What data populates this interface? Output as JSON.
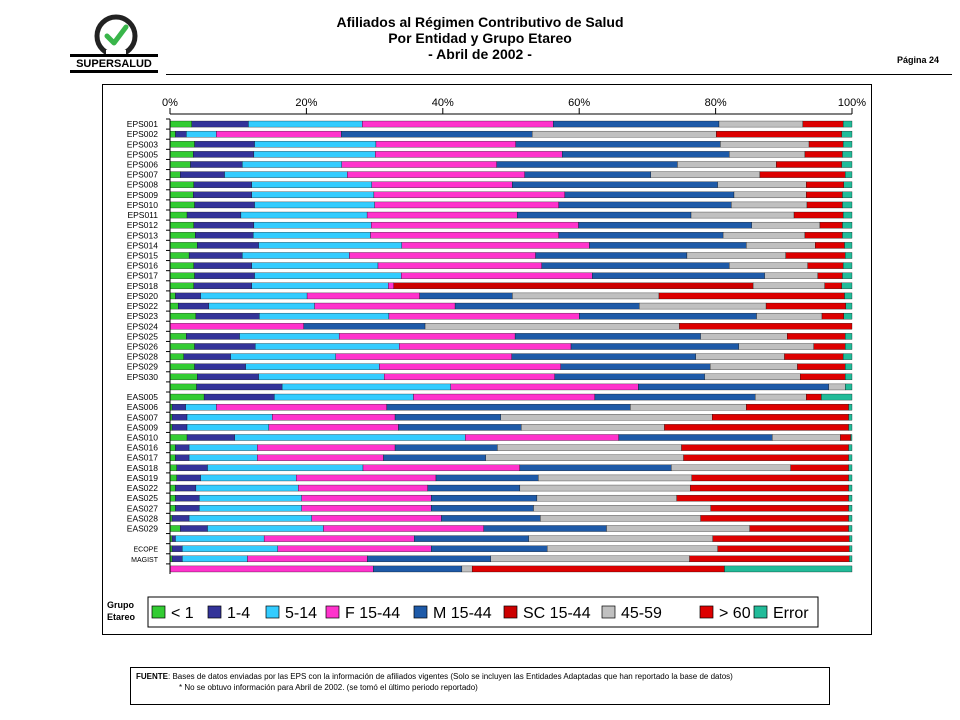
{
  "header": {
    "title_line1": "Afiliados al Régimen Contributivo de Salud",
    "title_line2": "Por Entidad y Grupo Etareo",
    "title_line3": "- Abril de 2002 -",
    "logo_text": "SUPERSALUD",
    "page_label": "Página 24"
  },
  "footer": {
    "source_label": "FUENTE",
    "source_text": ": Bases de datos enviadas por las EPS con la información de afiliados vigentes (Solo se incluyen las Entidades Adaptadas que han reportado la base de datos)",
    "note_text": "* No se obtuvo información para Abril de 2002. (se tomó el último periodo reportado)"
  },
  "colors": {
    "lt1": "#33cc33",
    "c1_4": "#333399",
    "c5_14": "#33ccff",
    "f15_44": "#ff33cc",
    "m15_44": "#1e5aa8",
    "sc15_44": "#cc0000",
    "c45_59": "#c0c0c0",
    "gt60": "#dd0000",
    "error": "#22bb99"
  },
  "chart_data": {
    "type": "bar",
    "orientation": "horizontal",
    "stacked": true,
    "xlim": [
      0,
      100
    ],
    "x_ticks": [
      "0%",
      "20%",
      "40%",
      "60%",
      "80%",
      "100%"
    ],
    "legend_title": "Grupo Etareo",
    "legend_position": "bottom",
    "series_names": [
      "< 1",
      "1-4",
      "5-14",
      "F 15-44",
      "M 15-44",
      "SC 15-44",
      "45-59",
      "> 60",
      "Error"
    ],
    "series_colors": [
      "lt1",
      "c1_4",
      "c5_14",
      "f15_44",
      "m15_44",
      "sc15_44",
      "c45_59",
      "gt60",
      "error"
    ],
    "categories": [
      "EPS001",
      "EPS002",
      "EPS003",
      "EPS005",
      "EPS006",
      "EPS007",
      "EPS008",
      "EPS009",
      "EPS010",
      "EPS011",
      "EPS012",
      "EPS013",
      "EPS014",
      "EPS015",
      "EPS016",
      "EPS017",
      "EPS018",
      "EPS020",
      "EPS022",
      "EPS023",
      "EPS024",
      "EPS025",
      "EPS026",
      "EPS028",
      "EPS029",
      "EPS030",
      "",
      "EAS005",
      "EAS006",
      "EAS007",
      "EAS009",
      "EAS010",
      "EAS016",
      "EAS017",
      "EAS018",
      "EAS019",
      "EAS022",
      "EAS025",
      "EAS027",
      "EAS028",
      "EAS029",
      "",
      "ECOPE",
      "MAGIST",
      ""
    ],
    "rows": [
      [
        3.2,
        8.3,
        16.7,
        28.0,
        24.3,
        0,
        12.3,
        5.9,
        1.3
      ],
      [
        0.8,
        1.6,
        4.4,
        18.3,
        28.0,
        0,
        27.0,
        18.4,
        1.5
      ],
      [
        3.6,
        8.8,
        17.8,
        20.5,
        30.0,
        0,
        13.0,
        5.0,
        1.3
      ],
      [
        3.4,
        8.9,
        17.8,
        27.4,
        24.5,
        0,
        11.1,
        5.5,
        1.4
      ],
      [
        3.0,
        7.6,
        14.6,
        22.7,
        26.5,
        0,
        14.5,
        9.6,
        1.5
      ],
      [
        1.5,
        6.5,
        18.0,
        26.0,
        18.5,
        0,
        16.0,
        12.5,
        1.0
      ],
      [
        3.5,
        8.5,
        17.6,
        20.6,
        30.1,
        0,
        13.0,
        5.5,
        1.2
      ],
      [
        3.4,
        8.6,
        17.9,
        28.0,
        24.8,
        0,
        10.6,
        5.3,
        1.4
      ],
      [
        3.6,
        8.8,
        17.6,
        27.0,
        25.3,
        0,
        11.1,
        5.2,
        1.4
      ],
      [
        2.5,
        7.9,
        18.5,
        22.0,
        25.5,
        0,
        15.1,
        7.2,
        1.3
      ],
      [
        3.5,
        8.8,
        17.2,
        30.4,
        25.4,
        0,
        10.0,
        3.3,
        1.4
      ],
      [
        3.7,
        8.5,
        17.2,
        27.6,
        24.1,
        0,
        12.0,
        5.5,
        1.4
      ],
      [
        4.0,
        9.0,
        21.0,
        27.5,
        23.0,
        0,
        10.1,
        4.3,
        1.1
      ],
      [
        2.8,
        7.8,
        15.7,
        27.3,
        22.2,
        0,
        14.5,
        8.7,
        1.0
      ],
      [
        3.5,
        8.5,
        18.5,
        24.0,
        27.5,
        0,
        11.5,
        5.2,
        1.3
      ],
      [
        3.6,
        8.8,
        21.5,
        28.0,
        25.3,
        0,
        7.8,
        3.6,
        1.4
      ],
      [
        3.5,
        8.5,
        20.0,
        0.8,
        0,
        52.7,
        10.5,
        2.5,
        1.5
      ],
      [
        0.8,
        3.7,
        15.6,
        16.5,
        13.6,
        0,
        21.5,
        27.2,
        1.1
      ],
      [
        1.2,
        4.5,
        15.5,
        20.6,
        27.0,
        0,
        18.6,
        11.7,
        0.9
      ],
      [
        3.8,
        9.3,
        19.0,
        27.9,
        26.0,
        0,
        9.6,
        3.2,
        1.2
      ],
      [
        0,
        0,
        0,
        19.6,
        17.8,
        0,
        37.3,
        25.3,
        0
      ],
      [
        2.4,
        7.8,
        14.6,
        25.8,
        27.2,
        0,
        12.7,
        8.5,
        1.0
      ],
      [
        3.6,
        8.9,
        21.1,
        25.2,
        24.6,
        0,
        11.0,
        4.6,
        1.0
      ],
      [
        2.0,
        6.9,
        15.4,
        25.8,
        27.0,
        0,
        13.0,
        8.6,
        1.3
      ],
      [
        3.6,
        7.5,
        19.6,
        26.6,
        21.9,
        0,
        12.8,
        7.0,
        1.0
      ],
      [
        4.0,
        9.0,
        18.4,
        25.0,
        22.0,
        0,
        14.0,
        6.6,
        1.0
      ],
      [
        4.0,
        12.9,
        25.4,
        28.3,
        28.7,
        0,
        2.5,
        0,
        1.0
      ],
      [
        5.0,
        10.3,
        20.4,
        26.6,
        23.5,
        0,
        7.5,
        2.2,
        4.5
      ],
      [
        0.3,
        2.0,
        4.5,
        25.0,
        35.7,
        0,
        17.0,
        15.0,
        0.5
      ],
      [
        0.3,
        2.2,
        12.5,
        18.0,
        15.5,
        0,
        31.0,
        20.0,
        0.5
      ],
      [
        0.3,
        2.2,
        12.0,
        19.0,
        18.0,
        0,
        21.0,
        27.0,
        0.5
      ],
      [
        2.5,
        7.0,
        33.8,
        22.5,
        22.5,
        0,
        10.0,
        1.5,
        0.2
      ],
      [
        0.8,
        2.0,
        10.0,
        20.2,
        15.0,
        0,
        27.0,
        24.5,
        0.5
      ],
      [
        0.8,
        2.0,
        10.0,
        18.5,
        15.0,
        0,
        29.0,
        24.2,
        0.5
      ],
      [
        1.0,
        4.5,
        22.8,
        23.0,
        22.2,
        0,
        17.5,
        8.5,
        0.5
      ],
      [
        1.0,
        3.5,
        14.0,
        20.5,
        15.0,
        0,
        22.5,
        23.0,
        0.5
      ],
      [
        0.8,
        3.0,
        15.0,
        19.0,
        13.5,
        0,
        25.0,
        23.2,
        0.5
      ],
      [
        0.8,
        3.5,
        15.0,
        19.0,
        15.5,
        0,
        20.5,
        25.2,
        0.5
      ],
      [
        0.8,
        3.5,
        15.0,
        19.0,
        15.0,
        0,
        26.0,
        20.2,
        0.5
      ],
      [
        0.3,
        2.5,
        18.0,
        19.0,
        14.5,
        0,
        23.5,
        21.7,
        0.5
      ],
      [
        1.5,
        4.0,
        17.0,
        23.5,
        18.0,
        0,
        21.0,
        14.5,
        0.5
      ],
      [
        0.3,
        0.5,
        13.0,
        22.0,
        16.8,
        0,
        27.0,
        20.0,
        0.4
      ],
      [
        0.3,
        1.5,
        14.0,
        22.5,
        17.0,
        0,
        25.0,
        19.3,
        0.4
      ],
      [
        0.3,
        1.5,
        9.5,
        17.5,
        18.0,
        0,
        29.0,
        23.3,
        0.4
      ],
      [
        0,
        0,
        0,
        29.8,
        13.0,
        0,
        1.5,
        37.0,
        18.7
      ]
    ]
  }
}
